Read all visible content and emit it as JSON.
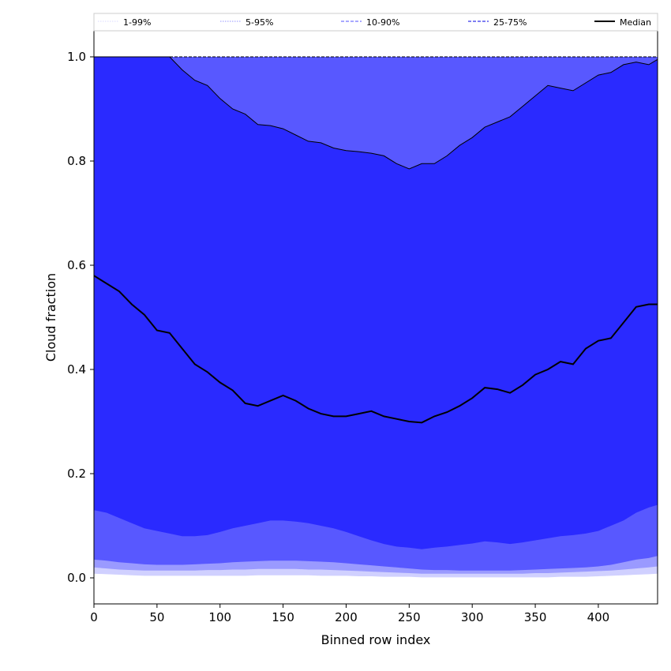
{
  "chart_data": {
    "type": "area",
    "xlabel": "Binned row index",
    "ylabel": "Cloud fraction",
    "xlim": [
      0,
      447
    ],
    "ylim": [
      -0.05,
      1.05
    ],
    "x_ticks": [
      0,
      50,
      100,
      150,
      200,
      250,
      300,
      350,
      400
    ],
    "y_ticks": [
      0.0,
      0.2,
      0.4,
      0.6,
      0.8,
      1.0
    ],
    "grid": false,
    "legend_position": "top",
    "legend": [
      {
        "label": "1-99%",
        "style": "dotted",
        "color": "#e6e6ff"
      },
      {
        "label": "5-95%",
        "style": "dotted",
        "color": "#b8b8ff"
      },
      {
        "label": "10-90%",
        "style": "dashed",
        "color": "#8c8cff"
      },
      {
        "label": "25-75%",
        "style": "dashed",
        "color": "#5555ee"
      },
      {
        "label": "Median",
        "style": "solid",
        "color": "#000000"
      }
    ],
    "x": [
      0,
      10,
      20,
      30,
      40,
      50,
      60,
      70,
      80,
      90,
      100,
      110,
      120,
      130,
      140,
      150,
      160,
      170,
      180,
      190,
      200,
      210,
      220,
      230,
      240,
      250,
      260,
      270,
      280,
      290,
      300,
      310,
      320,
      330,
      340,
      350,
      360,
      370,
      380,
      390,
      400,
      410,
      420,
      430,
      440,
      447
    ],
    "series": [
      {
        "name": "Median",
        "values": [
          0.58,
          0.565,
          0.55,
          0.525,
          0.505,
          0.475,
          0.47,
          0.44,
          0.41,
          0.395,
          0.375,
          0.36,
          0.335,
          0.33,
          0.34,
          0.35,
          0.34,
          0.325,
          0.315,
          0.31,
          0.31,
          0.315,
          0.32,
          0.31,
          0.305,
          0.3,
          0.298,
          0.31,
          0.318,
          0.33,
          0.345,
          0.365,
          0.362,
          0.355,
          0.37,
          0.39,
          0.4,
          0.415,
          0.41,
          0.44,
          0.455,
          0.46,
          0.49,
          0.52,
          0.525,
          0.525
        ]
      },
      {
        "name": "p75",
        "values": [
          1.0,
          1.0,
          1.0,
          1.0,
          1.0,
          1.0,
          1.0,
          0.975,
          0.955,
          0.945,
          0.92,
          0.9,
          0.89,
          0.87,
          0.868,
          0.862,
          0.85,
          0.838,
          0.835,
          0.825,
          0.82,
          0.818,
          0.815,
          0.81,
          0.795,
          0.785,
          0.795,
          0.795,
          0.81,
          0.83,
          0.845,
          0.865,
          0.875,
          0.885,
          0.905,
          0.925,
          0.945,
          0.94,
          0.935,
          0.95,
          0.965,
          0.97,
          0.985,
          0.99,
          0.985,
          0.995
        ]
      },
      {
        "name": "p25",
        "values": [
          0.13,
          0.125,
          0.115,
          0.105,
          0.095,
          0.09,
          0.085,
          0.08,
          0.08,
          0.082,
          0.088,
          0.095,
          0.1,
          0.105,
          0.11,
          0.11,
          0.108,
          0.105,
          0.1,
          0.095,
          0.088,
          0.08,
          0.072,
          0.065,
          0.06,
          0.058,
          0.055,
          0.058,
          0.06,
          0.063,
          0.066,
          0.07,
          0.068,
          0.065,
          0.068,
          0.072,
          0.076,
          0.08,
          0.082,
          0.085,
          0.09,
          0.1,
          0.11,
          0.125,
          0.135,
          0.14
        ]
      },
      {
        "name": "p10",
        "values": [
          0.035,
          0.033,
          0.03,
          0.028,
          0.026,
          0.025,
          0.025,
          0.025,
          0.026,
          0.027,
          0.028,
          0.03,
          0.031,
          0.032,
          0.033,
          0.033,
          0.033,
          0.032,
          0.031,
          0.03,
          0.028,
          0.026,
          0.024,
          0.022,
          0.02,
          0.018,
          0.016,
          0.015,
          0.015,
          0.014,
          0.014,
          0.014,
          0.014,
          0.014,
          0.015,
          0.016,
          0.017,
          0.018,
          0.019,
          0.02,
          0.022,
          0.025,
          0.03,
          0.035,
          0.038,
          0.042
        ]
      },
      {
        "name": "p5",
        "values": [
          0.02,
          0.018,
          0.016,
          0.015,
          0.014,
          0.014,
          0.014,
          0.014,
          0.014,
          0.015,
          0.015,
          0.016,
          0.016,
          0.017,
          0.017,
          0.017,
          0.017,
          0.016,
          0.016,
          0.015,
          0.014,
          0.013,
          0.012,
          0.011,
          0.01,
          0.009,
          0.008,
          0.008,
          0.008,
          0.008,
          0.008,
          0.008,
          0.008,
          0.008,
          0.008,
          0.009,
          0.009,
          0.01,
          0.011,
          0.012,
          0.013,
          0.014,
          0.016,
          0.018,
          0.02,
          0.022
        ]
      },
      {
        "name": "p1",
        "values": [
          0.008,
          0.007,
          0.006,
          0.005,
          0.004,
          0.004,
          0.004,
          0.004,
          0.004,
          0.004,
          0.004,
          0.004,
          0.004,
          0.005,
          0.005,
          0.005,
          0.005,
          0.005,
          0.004,
          0.004,
          0.004,
          0.003,
          0.003,
          0.002,
          0.002,
          0.002,
          0.001,
          0.001,
          0.001,
          0.001,
          0.001,
          0.001,
          0.001,
          0.001,
          0.001,
          0.001,
          0.001,
          0.002,
          0.002,
          0.002,
          0.003,
          0.004,
          0.005,
          0.006,
          0.007,
          0.008
        ]
      },
      {
        "name": "p90",
        "values": [
          1.0,
          1.0,
          1.0,
          1.0,
          1.0,
          1.0,
          1.0,
          1.0,
          1.0,
          1.0,
          1.0,
          1.0,
          1.0,
          1.0,
          1.0,
          1.0,
          1.0,
          1.0,
          1.0,
          1.0,
          1.0,
          1.0,
          1.0,
          1.0,
          1.0,
          1.0,
          1.0,
          1.0,
          1.0,
          1.0,
          1.0,
          1.0,
          1.0,
          1.0,
          1.0,
          1.0,
          1.0,
          1.0,
          1.0,
          1.0,
          1.0,
          1.0,
          1.0,
          1.0,
          1.0,
          1.0
        ]
      }
    ],
    "band_colors": {
      "p1_p99": "#d0d0ff",
      "p5_p95": "#9a9aff",
      "p10_p90": "#5858ff",
      "p25_p75": "#2a2aff"
    }
  }
}
